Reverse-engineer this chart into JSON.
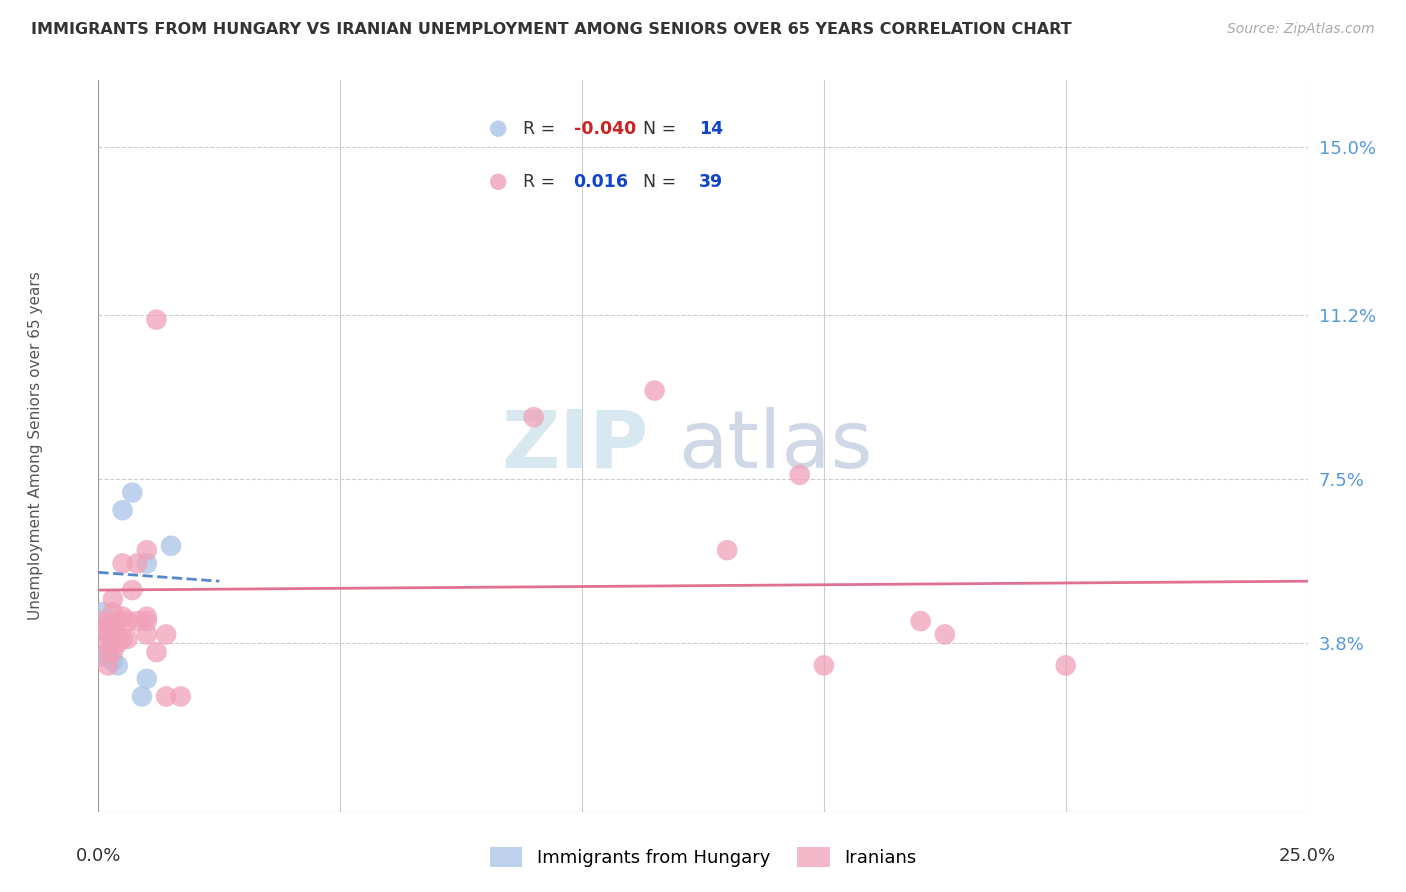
{
  "title": "IMMIGRANTS FROM HUNGARY VS IRANIAN UNEMPLOYMENT AMONG SENIORS OVER 65 YEARS CORRELATION CHART",
  "source": "Source: ZipAtlas.com",
  "ylabel": "Unemployment Among Seniors over 65 years",
  "xlim": [
    0.0,
    0.25
  ],
  "ylim": [
    0.0,
    0.165
  ],
  "xticks": [
    0.0,
    0.05,
    0.1,
    0.15,
    0.2,
    0.25
  ],
  "ytick_labels_right": [
    "15.0%",
    "11.2%",
    "7.5%",
    "3.8%"
  ],
  "ytick_values_right": [
    0.15,
    0.112,
    0.075,
    0.038
  ],
  "background_color": "#ffffff",
  "grid_color": "#cccccc",
  "hungary_color": "#aac4e8",
  "iran_color": "#f0a0b8",
  "hungary_R": -0.04,
  "hungary_N": 14,
  "iran_R": 0.016,
  "iran_N": 39,
  "hungary_points": [
    [
      0.005,
      0.068
    ],
    [
      0.007,
      0.072
    ],
    [
      0.01,
      0.056
    ],
    [
      0.015,
      0.06
    ],
    [
      0.001,
      0.045
    ],
    [
      0.002,
      0.042
    ],
    [
      0.002,
      0.04
    ],
    [
      0.003,
      0.038
    ],
    [
      0.001,
      0.035
    ],
    [
      0.002,
      0.036
    ],
    [
      0.003,
      0.034
    ],
    [
      0.004,
      0.033
    ],
    [
      0.009,
      0.026
    ],
    [
      0.01,
      0.03
    ]
  ],
  "iran_points": [
    [
      0.001,
      0.043
    ],
    [
      0.001,
      0.041
    ],
    [
      0.002,
      0.04
    ],
    [
      0.002,
      0.038
    ],
    [
      0.002,
      0.042
    ],
    [
      0.002,
      0.036
    ],
    [
      0.002,
      0.033
    ],
    [
      0.003,
      0.045
    ],
    [
      0.003,
      0.048
    ],
    [
      0.003,
      0.04
    ],
    [
      0.003,
      0.036
    ],
    [
      0.004,
      0.038
    ],
    [
      0.004,
      0.043
    ],
    [
      0.004,
      0.039
    ],
    [
      0.005,
      0.056
    ],
    [
      0.005,
      0.039
    ],
    [
      0.005,
      0.044
    ],
    [
      0.006,
      0.043
    ],
    [
      0.006,
      0.039
    ],
    [
      0.007,
      0.05
    ],
    [
      0.008,
      0.056
    ],
    [
      0.008,
      0.043
    ],
    [
      0.01,
      0.043
    ],
    [
      0.01,
      0.044
    ],
    [
      0.01,
      0.059
    ],
    [
      0.01,
      0.04
    ],
    [
      0.012,
      0.111
    ],
    [
      0.012,
      0.036
    ],
    [
      0.014,
      0.04
    ],
    [
      0.014,
      0.026
    ],
    [
      0.017,
      0.026
    ],
    [
      0.115,
      0.095
    ],
    [
      0.13,
      0.059
    ],
    [
      0.145,
      0.076
    ],
    [
      0.17,
      0.043
    ],
    [
      0.175,
      0.04
    ],
    [
      0.09,
      0.089
    ],
    [
      0.15,
      0.033
    ],
    [
      0.2,
      0.033
    ]
  ],
  "trendline_hungary": {
    "x_start": 0.0,
    "y_start": 0.054,
    "x_end": 0.025,
    "y_end": 0.052
  },
  "trendline_iran": {
    "x_start": 0.0,
    "y_start": 0.05,
    "x_end": 0.25,
    "y_end": 0.052
  },
  "watermark_zip": "ZIP",
  "watermark_atlas": "atlas"
}
